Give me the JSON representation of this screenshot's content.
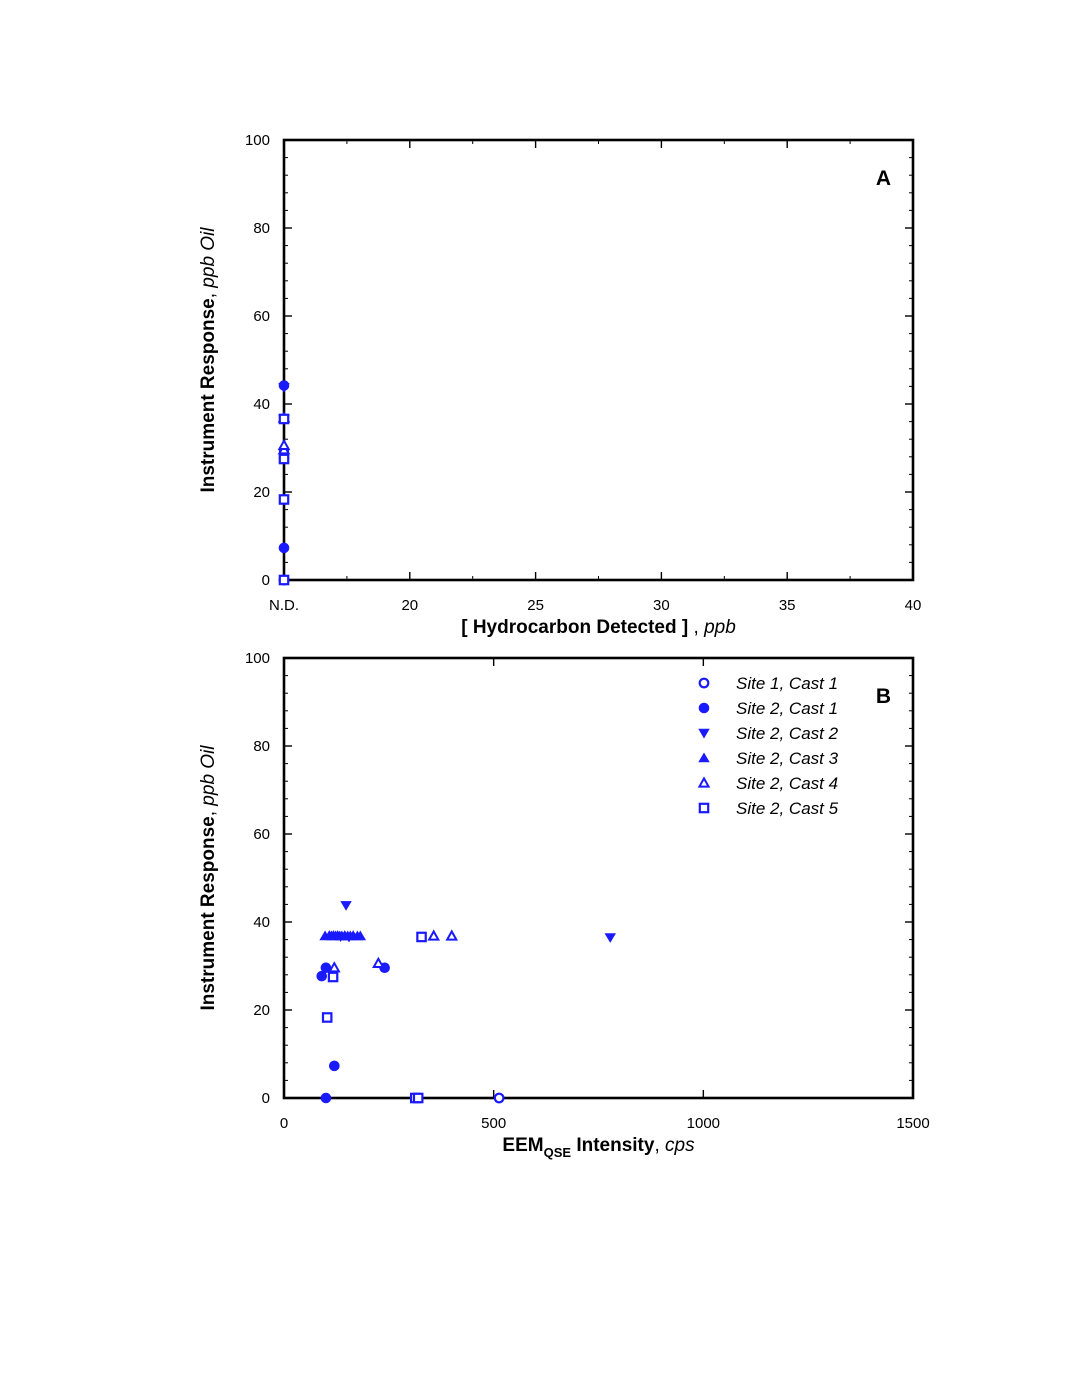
{
  "marker_color": "#1a1aff",
  "chart_data": [
    {
      "panel_label": "A",
      "type": "scatter",
      "xlabel": {
        "main": "[ Hydrocarbon Detected ]",
        "sep": " , ",
        "unit": "ppb"
      },
      "ylabel": {
        "main": "Instrument Response",
        "sep": ", ",
        "unit": "ppb Oil"
      },
      "xlim": [
        15,
        40
      ],
      "ylim": [
        0,
        100
      ],
      "x_ticks": [
        {
          "value": 15,
          "label": "N.D."
        },
        {
          "value": 20,
          "label": "20"
        },
        {
          "value": 25,
          "label": "25"
        },
        {
          "value": 30,
          "label": "30"
        },
        {
          "value": 35,
          "label": "35"
        },
        {
          "value": 40,
          "label": "40"
        }
      ],
      "y_ticks": [
        {
          "value": 0,
          "label": "0"
        },
        {
          "value": 20,
          "label": "20"
        },
        {
          "value": 40,
          "label": "40"
        },
        {
          "value": 60,
          "label": "60"
        },
        {
          "value": 80,
          "label": "80"
        },
        {
          "value": 100,
          "label": "100"
        }
      ],
      "series": [
        {
          "marker": "circle-open",
          "points": [
            [
              15,
              0
            ]
          ]
        },
        {
          "marker": "circle-filled",
          "points": [
            [
              15,
              44.2
            ],
            [
              15,
              29.6
            ],
            [
              15,
              27.7
            ],
            [
              15,
              7.3
            ],
            [
              15,
              0
            ]
          ]
        },
        {
          "marker": "tri-down",
          "points": [
            [
              15,
              43.8
            ],
            [
              15,
              36.7
            ],
            [
              15,
              36.5
            ]
          ]
        },
        {
          "marker": "tri-up-filled",
          "points": [
            [
              15,
              36.8
            ],
            [
              15,
              36.9
            ],
            [
              15,
              30.6
            ]
          ]
        },
        {
          "marker": "tri-up-open",
          "points": [
            [
              15,
              29.6
            ],
            [
              15,
              30.6
            ],
            [
              15,
              36.8
            ]
          ]
        },
        {
          "marker": "square-open",
          "points": [
            [
              15,
              36.6
            ],
            [
              15,
              27.5
            ],
            [
              15,
              18.3
            ],
            [
              15,
              0
            ]
          ]
        }
      ]
    },
    {
      "panel_label": "B",
      "type": "scatter",
      "xlabel": {
        "main": "EEM",
        "sub": "QSE",
        "main2": " Intensity",
        "sep": ", ",
        "unit": "cps"
      },
      "ylabel": {
        "main": "Instrument Response",
        "sep": ", ",
        "unit": "ppb Oil"
      },
      "xlim": [
        0,
        1500
      ],
      "ylim": [
        0,
        100
      ],
      "x_ticks": [
        {
          "value": 0,
          "label": "0"
        },
        {
          "value": 500,
          "label": "500"
        },
        {
          "value": 1000,
          "label": "1000"
        },
        {
          "value": 1500,
          "label": "1500"
        }
      ],
      "y_ticks": [
        {
          "value": 0,
          "label": "0"
        },
        {
          "value": 20,
          "label": "20"
        },
        {
          "value": 40,
          "label": "40"
        },
        {
          "value": 60,
          "label": "60"
        },
        {
          "value": 80,
          "label": "80"
        },
        {
          "value": 100,
          "label": "100"
        }
      ],
      "legend_position": "top-right",
      "series": [
        {
          "name": "Site 1, Cast 1",
          "marker": "circle-open",
          "points": [
            [
              513,
              0
            ]
          ]
        },
        {
          "name": "Site 2, Cast 1",
          "marker": "circle-filled",
          "points": [
            [
              90,
              27.7
            ],
            [
              100,
              29.6
            ],
            [
              100,
              0
            ],
            [
              120,
              7.3
            ],
            [
              240,
              29.6
            ]
          ]
        },
        {
          "name": "Site 2, Cast 2",
          "marker": "tri-down",
          "points": [
            [
              148,
              43.8
            ],
            [
              778,
              36.5
            ],
            [
              135,
              36.7
            ],
            [
              155,
              36.6
            ]
          ]
        },
        {
          "name": "Site 2, Cast 3",
          "marker": "tri-up-filled",
          "points": [
            [
              98,
              36.8
            ],
            [
              108,
              36.9
            ],
            [
              113,
              36.8
            ],
            [
              118,
              36.9
            ],
            [
              123,
              36.8
            ],
            [
              128,
              36.9
            ],
            [
              133,
              36.8
            ],
            [
              138,
              36.8
            ],
            [
              145,
              36.9
            ],
            [
              152,
              36.8
            ],
            [
              158,
              36.8
            ],
            [
              165,
              36.9
            ],
            [
              175,
              36.8
            ],
            [
              182,
              36.8
            ]
          ]
        },
        {
          "name": "Site 2, Cast 4",
          "marker": "tri-up-open",
          "points": [
            [
              120,
              29.6
            ],
            [
              225,
              30.6
            ],
            [
              357,
              36.8
            ],
            [
              400,
              36.8
            ]
          ]
        },
        {
          "name": "Site 2, Cast 5",
          "marker": "square-open",
          "points": [
            [
              103,
              18.3
            ],
            [
              117,
              27.5
            ],
            [
              313,
              0
            ],
            [
              320,
              0
            ],
            [
              328,
              36.6
            ]
          ]
        }
      ]
    }
  ]
}
